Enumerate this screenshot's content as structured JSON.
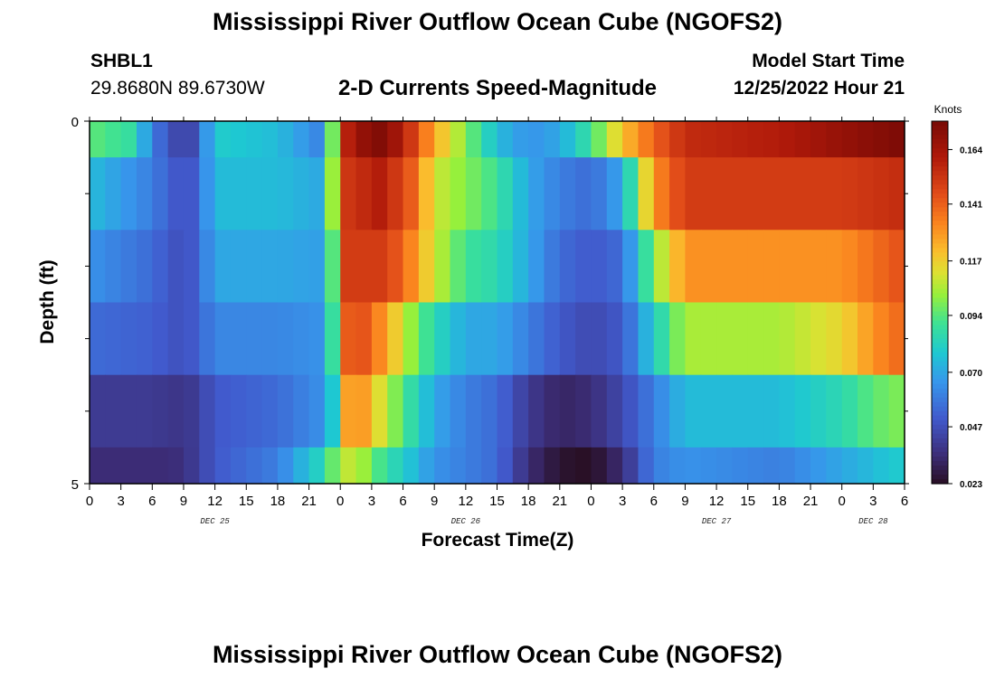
{
  "header": {
    "title": "Mississippi River Outflow Ocean Cube (NGOFS2)",
    "station_id": "SHBL1",
    "station_coords": "29.8680N  89.6730W",
    "chart_title": "2-D Currents Speed-Magnitude",
    "start_label": "Model Start Time",
    "start_value": "12/25/2022 Hour 21"
  },
  "footer": {
    "title": "Mississippi River Outflow Ocean Cube (NGOFS2)"
  },
  "chart_data": {
    "type": "heatmap",
    "title": "2-D Currents Speed-Magnitude",
    "xlabel": "Forecast Time(Z)",
    "ylabel": "Depth (ft)",
    "x_hours_start": 0,
    "x_hours_end": 78,
    "x_step_hours": 1.5,
    "x_tick_labels": [
      "0",
      "3",
      "6",
      "9",
      "12",
      "15",
      "18",
      "21",
      "0",
      "3",
      "6",
      "9",
      "12",
      "15",
      "18",
      "21",
      "0",
      "3",
      "6",
      "9",
      "12",
      "15",
      "18",
      "21",
      "0",
      "3",
      "6"
    ],
    "date_labels": [
      {
        "label": "DEC 25",
        "hour": 12
      },
      {
        "label": "DEC 26",
        "hour": 36
      },
      {
        "label": "DEC 27",
        "hour": 60
      },
      {
        "label": "DEC 28",
        "hour": 75
      }
    ],
    "y_tick_labels": [
      "0",
      "5"
    ],
    "ylim": [
      0,
      5
    ],
    "y_minor_ticks": [
      1,
      2,
      3,
      4
    ],
    "depth_layer_edges": [
      0,
      0.5,
      1.5,
      2.5,
      3.5,
      4.5,
      5
    ],
    "colorbar": {
      "label": "Knots",
      "min": 0.023,
      "max": 0.176,
      "tick_values": [
        0.023,
        0.047,
        0.07,
        0.094,
        0.117,
        0.141,
        0.164
      ],
      "tick_labels": [
        "0.023",
        "0.047",
        "0.070",
        "0.094",
        "0.117",
        "0.141",
        "0.164"
      ]
    },
    "series": [
      {
        "depth": 0,
        "keys": [
          [
            0,
            0.095
          ],
          [
            4,
            0.088
          ],
          [
            6,
            0.06
          ],
          [
            8,
            0.045
          ],
          [
            10,
            0.045
          ],
          [
            12,
            0.08
          ],
          [
            18,
            0.075
          ],
          [
            21,
            0.065
          ],
          [
            22.5,
            0.06
          ],
          [
            23.2,
            0.095
          ],
          [
            24,
            0.14
          ],
          [
            25,
            0.165
          ],
          [
            28,
            0.174
          ],
          [
            30,
            0.16
          ],
          [
            33,
            0.125
          ],
          [
            36,
            0.1
          ],
          [
            39,
            0.075
          ],
          [
            42,
            0.065
          ],
          [
            45,
            0.07
          ],
          [
            48,
            0.09
          ],
          [
            51,
            0.12
          ],
          [
            54,
            0.14
          ],
          [
            57,
            0.155
          ],
          [
            66,
            0.16
          ],
          [
            72,
            0.168
          ],
          [
            78,
            0.175
          ]
        ]
      },
      {
        "depth": 1,
        "keys": [
          [
            0,
            0.075
          ],
          [
            6,
            0.06
          ],
          [
            8,
            0.05
          ],
          [
            10,
            0.05
          ],
          [
            12,
            0.075
          ],
          [
            18,
            0.075
          ],
          [
            22.5,
            0.07
          ],
          [
            23.2,
            0.1
          ],
          [
            24,
            0.15
          ],
          [
            28,
            0.16
          ],
          [
            31,
            0.14
          ],
          [
            33,
            0.11
          ],
          [
            36,
            0.1
          ],
          [
            39,
            0.09
          ],
          [
            42,
            0.07
          ],
          [
            45,
            0.06
          ],
          [
            48,
            0.055
          ],
          [
            51,
            0.07
          ],
          [
            54,
            0.13
          ],
          [
            57,
            0.15
          ],
          [
            72,
            0.15
          ],
          [
            78,
            0.155
          ]
        ]
      },
      {
        "depth": 2,
        "keys": [
          [
            0,
            0.065
          ],
          [
            6,
            0.055
          ],
          [
            8,
            0.048
          ],
          [
            10,
            0.05
          ],
          [
            12,
            0.07
          ],
          [
            18,
            0.07
          ],
          [
            22.5,
            0.068
          ],
          [
            23.2,
            0.09
          ],
          [
            24,
            0.15
          ],
          [
            28,
            0.15
          ],
          [
            30,
            0.14
          ],
          [
            33,
            0.11
          ],
          [
            36,
            0.09
          ],
          [
            39,
            0.085
          ],
          [
            42,
            0.07
          ],
          [
            45,
            0.055
          ],
          [
            48,
            0.05
          ],
          [
            51,
            0.055
          ],
          [
            54,
            0.1
          ],
          [
            57,
            0.13
          ],
          [
            72,
            0.13
          ],
          [
            78,
            0.145
          ]
        ]
      },
      {
        "depth": 3,
        "keys": [
          [
            0,
            0.055
          ],
          [
            6,
            0.052
          ],
          [
            8,
            0.048
          ],
          [
            10,
            0.05
          ],
          [
            12,
            0.062
          ],
          [
            18,
            0.062
          ],
          [
            22.5,
            0.065
          ],
          [
            23.2,
            0.085
          ],
          [
            24,
            0.14
          ],
          [
            26,
            0.145
          ],
          [
            28,
            0.13
          ],
          [
            31,
            0.1
          ],
          [
            33,
            0.085
          ],
          [
            36,
            0.07
          ],
          [
            39,
            0.07
          ],
          [
            42,
            0.06
          ],
          [
            45,
            0.05
          ],
          [
            48,
            0.045
          ],
          [
            51,
            0.05
          ],
          [
            54,
            0.08
          ],
          [
            57,
            0.105
          ],
          [
            66,
            0.105
          ],
          [
            72,
            0.115
          ],
          [
            75,
            0.13
          ],
          [
            78,
            0.14
          ]
        ]
      },
      {
        "depth": 4,
        "keys": [
          [
            0,
            0.04
          ],
          [
            6,
            0.04
          ],
          [
            8,
            0.038
          ],
          [
            10,
            0.04
          ],
          [
            12,
            0.05
          ],
          [
            18,
            0.055
          ],
          [
            22.5,
            0.065
          ],
          [
            23.2,
            0.075
          ],
          [
            24,
            0.125
          ],
          [
            26,
            0.13
          ],
          [
            28,
            0.11
          ],
          [
            31,
            0.085
          ],
          [
            33,
            0.07
          ],
          [
            36,
            0.06
          ],
          [
            39,
            0.055
          ],
          [
            42,
            0.04
          ],
          [
            45,
            0.032
          ],
          [
            48,
            0.035
          ],
          [
            51,
            0.045
          ],
          [
            54,
            0.06
          ],
          [
            57,
            0.075
          ],
          [
            66,
            0.075
          ],
          [
            72,
            0.085
          ],
          [
            75,
            0.095
          ],
          [
            78,
            0.1
          ]
        ]
      },
      {
        "depth": 5,
        "keys": [
          [
            0,
            0.035
          ],
          [
            6,
            0.035
          ],
          [
            8,
            0.035
          ],
          [
            10,
            0.04
          ],
          [
            12,
            0.05
          ],
          [
            18,
            0.06
          ],
          [
            22.5,
            0.085
          ],
          [
            23.2,
            0.095
          ],
          [
            24,
            0.11
          ],
          [
            26,
            0.105
          ],
          [
            28,
            0.09
          ],
          [
            31,
            0.075
          ],
          [
            33,
            0.065
          ],
          [
            36,
            0.06
          ],
          [
            39,
            0.055
          ],
          [
            42,
            0.035
          ],
          [
            45,
            0.025
          ],
          [
            48,
            0.023
          ],
          [
            51,
            0.035
          ],
          [
            54,
            0.06
          ],
          [
            57,
            0.065
          ],
          [
            66,
            0.06
          ],
          [
            72,
            0.07
          ],
          [
            75,
            0.075
          ],
          [
            78,
            0.08
          ]
        ]
      }
    ]
  }
}
